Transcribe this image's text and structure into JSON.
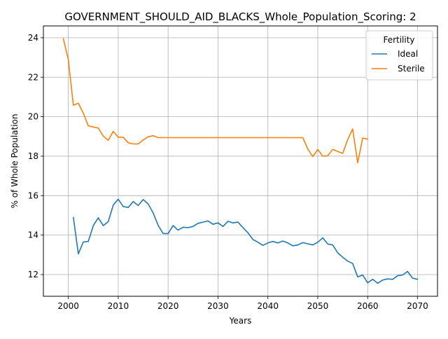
{
  "chart_data": {
    "type": "line",
    "title": "GOVERNMENT_SHOULD_AID_BLACKS_Whole_Population_Scoring: 2",
    "xlabel": "Years",
    "ylabel": "% of Whole Population",
    "xlim": [
      1995,
      2074
    ],
    "ylim": [
      10.9,
      24.6
    ],
    "xticks": [
      2000,
      2010,
      2020,
      2030,
      2040,
      2050,
      2060,
      2070
    ],
    "yticks": [
      12,
      14,
      16,
      18,
      20,
      22,
      24
    ],
    "grid": true,
    "legend": {
      "title": "Fertility",
      "placement": "top-right"
    },
    "series": [
      {
        "name": "Ideal",
        "color": "#1f77b4",
        "x": [
          2001,
          2002,
          2003,
          2004,
          2005,
          2006,
          2007,
          2008,
          2009,
          2010,
          2011,
          2012,
          2013,
          2014,
          2015,
          2016,
          2017,
          2018,
          2019,
          2020,
          2021,
          2022,
          2023,
          2024,
          2025,
          2026,
          2027,
          2028,
          2029,
          2030,
          2031,
          2032,
          2033,
          2034,
          2035,
          2036,
          2037,
          2038,
          2039,
          2040,
          2041,
          2042,
          2043,
          2044,
          2045,
          2046,
          2047,
          2048,
          2049,
          2050,
          2051,
          2052,
          2053,
          2054,
          2055,
          2056,
          2057,
          2058,
          2059,
          2060,
          2061,
          2062,
          2063,
          2064,
          2065,
          2066,
          2067,
          2068,
          2069,
          2070
        ],
        "values": [
          14.9,
          13.05,
          13.65,
          13.68,
          14.48,
          14.88,
          14.48,
          14.68,
          15.52,
          15.82,
          15.45,
          15.4,
          15.7,
          15.5,
          15.8,
          15.58,
          15.12,
          14.5,
          14.08,
          14.08,
          14.48,
          14.25,
          14.4,
          14.38,
          14.44,
          14.6,
          14.66,
          14.72,
          14.55,
          14.62,
          14.44,
          14.7,
          14.62,
          14.66,
          14.38,
          14.12,
          13.78,
          13.64,
          13.48,
          13.6,
          13.68,
          13.6,
          13.7,
          13.6,
          13.46,
          13.5,
          13.62,
          13.56,
          13.5,
          13.64,
          13.86,
          13.55,
          13.5,
          13.1,
          12.88,
          12.68,
          12.56,
          11.88,
          11.98,
          11.58,
          11.76,
          11.56,
          11.72,
          11.78,
          11.76,
          11.94,
          11.98,
          12.16,
          11.82,
          11.76
        ]
      },
      {
        "name": "Sterile",
        "color": "#ff7f0e",
        "x": [
          1999,
          2000,
          2001,
          2002,
          2003,
          2004,
          2005,
          2006,
          2007,
          2008,
          2009,
          2010,
          2011,
          2012,
          2013,
          2014,
          2015,
          2016,
          2017,
          2018,
          2019,
          2020,
          2021,
          2022,
          2023,
          2024,
          2025,
          2026,
          2027,
          2028,
          2029,
          2030,
          2031,
          2032,
          2033,
          2034,
          2035,
          2036,
          2037,
          2038,
          2039,
          2040,
          2041,
          2042,
          2043,
          2044,
          2045,
          2046,
          2047,
          2048,
          2049,
          2050,
          2051,
          2052,
          2053,
          2054,
          2055,
          2056,
          2057,
          2058,
          2059,
          2060
        ],
        "values": [
          23.95,
          22.9,
          20.58,
          20.68,
          20.18,
          19.54,
          19.48,
          19.42,
          19.02,
          18.8,
          19.26,
          18.96,
          18.96,
          18.68,
          18.62,
          18.62,
          18.82,
          18.98,
          19.04,
          18.94,
          18.94,
          18.94,
          18.94,
          18.94,
          18.94,
          18.94,
          18.94,
          18.94,
          18.94,
          18.94,
          18.94,
          18.94,
          18.94,
          18.94,
          18.94,
          18.94,
          18.94,
          18.94,
          18.94,
          18.94,
          18.94,
          18.94,
          18.94,
          18.94,
          18.94,
          18.94,
          18.94,
          18.94,
          18.94,
          18.36,
          17.98,
          18.34,
          18.0,
          18.02,
          18.34,
          18.24,
          18.14,
          18.84,
          19.38,
          17.66,
          18.92,
          18.86
        ]
      }
    ]
  }
}
